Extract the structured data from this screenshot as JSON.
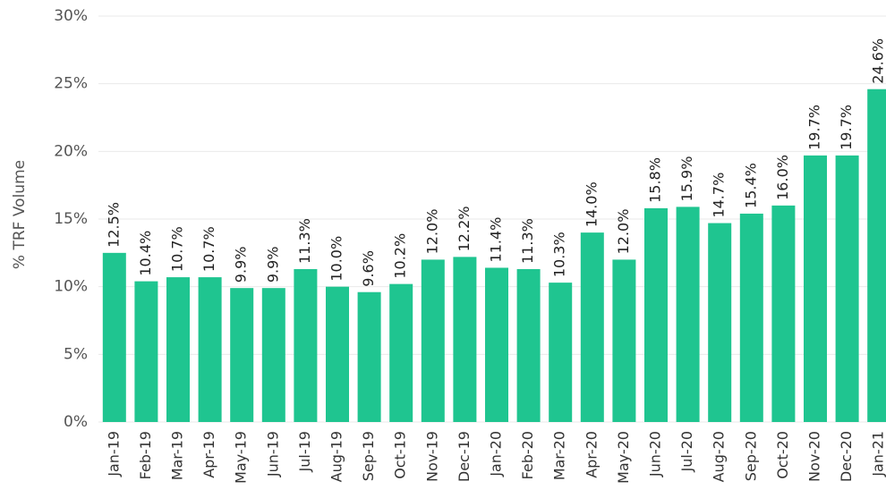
{
  "chart_data": {
    "type": "bar",
    "ylabel": "% TRF Volume",
    "categories": [
      "Jan-19",
      "Feb-19",
      "Mar-19",
      "Apr-19",
      "May-19",
      "Jun-19",
      "Jul-19",
      "Aug-19",
      "Sep-19",
      "Oct-19",
      "Nov-19",
      "Dec-19",
      "Jan-20",
      "Feb-20",
      "Mar-20",
      "Apr-20",
      "May-20",
      "Jun-20",
      "Jul-20",
      "Aug-20",
      "Sep-20",
      "Oct-20",
      "Nov-20",
      "Dec-20",
      "Jan-21"
    ],
    "values": [
      12.5,
      10.4,
      10.7,
      10.7,
      9.9,
      9.9,
      11.3,
      10.0,
      9.6,
      10.2,
      12.0,
      12.2,
      11.4,
      11.3,
      10.3,
      14.0,
      12.0,
      15.8,
      15.9,
      14.7,
      15.4,
      16.0,
      19.7,
      19.7,
      24.6
    ],
    "value_labels": [
      "12.5%",
      "10.4%",
      "10.7%",
      "10.7%",
      "9.9%",
      "9.9%",
      "11.3%",
      "10.0%",
      "9.6%",
      "10.2%",
      "12.0%",
      "12.2%",
      "11.4%",
      "11.3%",
      "10.3%",
      "14.0%",
      "12.0%",
      "15.8%",
      "15.9%",
      "14.7%",
      "15.4%",
      "16.0%",
      "19.7%",
      "19.7%",
      "24.6%"
    ],
    "color": "#1fc590",
    "ylim": [
      0,
      30
    ],
    "yticks": [
      {
        "value": 0,
        "label": "0%"
      },
      {
        "value": 5,
        "label": "5%"
      },
      {
        "value": 10,
        "label": "10%"
      },
      {
        "value": 15,
        "label": "15%"
      },
      {
        "value": 20,
        "label": "20%"
      },
      {
        "value": 25,
        "label": "25%"
      },
      {
        "value": 30,
        "label": "30%"
      }
    ],
    "grid": true
  }
}
